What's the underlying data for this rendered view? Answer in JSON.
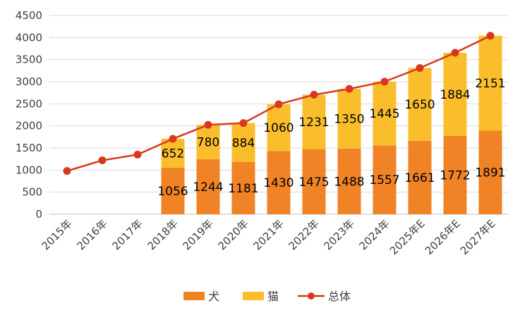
{
  "chart_data": {
    "type": "bar",
    "stacked": true,
    "categories": [
      "2015年",
      "2016年",
      "2017年",
      "2018年",
      "2019年",
      "2020年",
      "2021年",
      "2022年",
      "2023年",
      "2024年",
      "2025年E",
      "2026年E",
      "2027年E"
    ],
    "series": [
      {
        "name": "犬",
        "type": "bar",
        "color": "#F08326",
        "values": [
          null,
          null,
          null,
          1056,
          1244,
          1181,
          1430,
          1475,
          1488,
          1557,
          1661,
          1772,
          1891
        ]
      },
      {
        "name": "猫",
        "type": "bar",
        "color": "#FABE2C",
        "values": [
          null,
          null,
          null,
          652,
          780,
          884,
          1060,
          1231,
          1350,
          1445,
          1650,
          1884,
          2151
        ]
      },
      {
        "name": "总体",
        "type": "line",
        "color": "#D9381E",
        "values": [
          980,
          1220,
          1350,
          1708,
          2024,
          2065,
          2490,
          2706,
          2838,
          3002,
          3311,
          3656,
          4042
        ]
      }
    ],
    "ylim": [
      0,
      4500
    ],
    "yticks": [
      0,
      500,
      1000,
      1500,
      2000,
      2500,
      3000,
      3500,
      4000,
      4500
    ],
    "grid": "horizontal",
    "legend_position": "bottom",
    "title": "",
    "xlabel": "",
    "ylabel": ""
  }
}
